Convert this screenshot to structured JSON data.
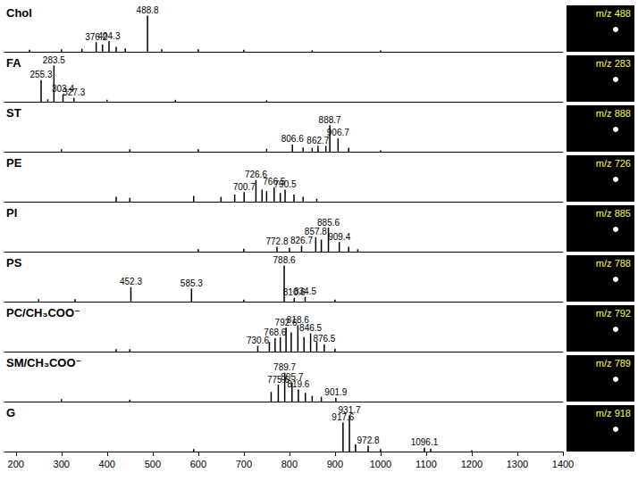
{
  "chart_data": [
    {
      "type": "bar",
      "title": "Chol",
      "color": "#000000",
      "grid": false,
      "tick_labels": false,
      "xlim": [
        175,
        1400
      ],
      "ylim": [
        0,
        100
      ],
      "annotations": [
        "m/z 488"
      ],
      "x": [
        230,
        300,
        345,
        376.2,
        390,
        404.3,
        420,
        440,
        488.8,
        520,
        600,
        700,
        850,
        1000
      ],
      "values": [
        4,
        5,
        6,
        20,
        15,
        22,
        10,
        7,
        75,
        5,
        5,
        4,
        3,
        3
      ],
      "peak_labels": [
        null,
        null,
        null,
        "376.2",
        null,
        "404.3",
        null,
        null,
        "488.8",
        null,
        null,
        null,
        null,
        null
      ]
    },
    {
      "type": "bar",
      "title": "FA",
      "color": "#000000",
      "grid": false,
      "tick_labels": false,
      "xlim": [
        175,
        1400
      ],
      "ylim": [
        0,
        100
      ],
      "annotations": [
        "m/z 283"
      ],
      "x": [
        255.3,
        270,
        283.5,
        303.4,
        327.3,
        400,
        550,
        750
      ],
      "values": [
        45,
        5,
        75,
        15,
        8,
        4,
        4,
        3
      ],
      "peak_labels": [
        "255.3",
        null,
        "283.5",
        "303.4",
        "327.3",
        null,
        null,
        null
      ]
    },
    {
      "type": "bar",
      "title": "ST",
      "color": "#000000",
      "grid": false,
      "tick_labels": false,
      "xlim": [
        175,
        1400
      ],
      "ylim": [
        0,
        100
      ],
      "annotations": [
        "m/z 888"
      ],
      "x": [
        300,
        450,
        600,
        750,
        806.6,
        830,
        850,
        862.7,
        880,
        888.7,
        906.7,
        930,
        1000
      ],
      "values": [
        5,
        5,
        5,
        6,
        15,
        9,
        8,
        12,
        12,
        55,
        28,
        8,
        3
      ],
      "peak_labels": [
        null,
        null,
        null,
        null,
        "806.6",
        null,
        null,
        "862.7",
        null,
        "888.7",
        "906.7",
        null,
        null
      ]
    },
    {
      "type": "bar",
      "title": "PE",
      "color": "#000000",
      "grid": false,
      "tick_labels": false,
      "xlim": [
        175,
        1400
      ],
      "ylim": [
        0,
        100
      ],
      "annotations": [
        "m/z 726"
      ],
      "x": [
        420,
        450,
        590,
        650,
        680,
        700.7,
        726.6,
        740,
        750,
        766.5,
        780,
        790.5,
        810,
        830,
        860
      ],
      "values": [
        10,
        8,
        12,
        10,
        15,
        20,
        45,
        25,
        22,
        30,
        18,
        25,
        15,
        10,
        6
      ],
      "peak_labels": [
        null,
        null,
        null,
        null,
        null,
        "700.7",
        "726.6",
        null,
        null,
        "766.5",
        null,
        "790.5",
        null,
        null,
        null
      ]
    },
    {
      "type": "bar",
      "title": "PI",
      "color": "#000000",
      "grid": false,
      "tick_labels": false,
      "xlim": [
        175,
        1400
      ],
      "ylim": [
        0,
        100
      ],
      "annotations": [
        "m/z 885"
      ],
      "x": [
        600,
        700,
        772.8,
        800,
        826.7,
        857.8,
        870,
        885.6,
        909.4,
        930,
        950
      ],
      "values": [
        5,
        6,
        10,
        8,
        12,
        30,
        25,
        50,
        20,
        10,
        5
      ],
      "peak_labels": [
        null,
        null,
        "772.8",
        null,
        "826.7",
        "857.8",
        null,
        "885.6",
        "909.4",
        null,
        null
      ]
    },
    {
      "type": "bar",
      "title": "PS",
      "color": "#000000",
      "grid": false,
      "tick_labels": false,
      "xlim": [
        175,
        1400
      ],
      "ylim": [
        0,
        100
      ],
      "annotations": [
        "m/z 788"
      ],
      "x": [
        250,
        330,
        452.3,
        585.3,
        700,
        788.6,
        810.6,
        834.5,
        900
      ],
      "values": [
        5,
        5,
        30,
        27,
        4,
        75,
        8,
        10,
        4
      ],
      "peak_labels": [
        null,
        null,
        "452.3",
        "585.3",
        null,
        "788.6",
        "810.6",
        "834.5",
        null
      ]
    },
    {
      "type": "bar",
      "title": "PC/CH₃COO⁻",
      "color": "#000000",
      "grid": false,
      "tick_labels": false,
      "xlim": [
        175,
        1400
      ],
      "ylim": [
        0,
        100
      ],
      "annotations": [
        "m/z 792"
      ],
      "x": [
        420,
        450,
        730.6,
        756,
        768.6,
        780,
        792.6,
        804,
        818.6,
        832,
        846.5,
        860,
        876.5,
        900
      ],
      "values": [
        5,
        5,
        12,
        20,
        28,
        30,
        50,
        40,
        55,
        30,
        38,
        20,
        15,
        6
      ],
      "peak_labels": [
        null,
        null,
        "730.6",
        null,
        "768.6",
        null,
        "792.6",
        null,
        "818.6",
        null,
        "846.5",
        null,
        "876.5",
        null
      ]
    },
    {
      "type": "bar",
      "title": "SM/CH₃COO⁻",
      "color": "#000000",
      "grid": false,
      "tick_labels": false,
      "xlim": [
        175,
        1400
      ],
      "ylim": [
        0,
        100
      ],
      "annotations": [
        "m/z 789"
      ],
      "x": [
        300,
        450,
        760,
        775.6,
        789.7,
        805.7,
        819.6,
        835,
        850,
        870,
        901.9
      ],
      "values": [
        5,
        4,
        20,
        35,
        60,
        40,
        25,
        18,
        12,
        10,
        8
      ],
      "peak_labels": [
        null,
        null,
        null,
        "775.6",
        "789.7",
        "805.7",
        "819.6",
        null,
        null,
        null,
        "901.9"
      ]
    },
    {
      "type": "bar",
      "title": "G",
      "color": "#000000",
      "grid": false,
      "tick_labels": "x",
      "xlim": [
        175,
        1400
      ],
      "ylim": [
        0,
        100
      ],
      "annotations": [
        "m/z 918"
      ],
      "xticks": [
        200,
        300,
        400,
        500,
        600,
        700,
        800,
        900,
        1000,
        1100,
        1200,
        1300,
        1400
      ],
      "x": [
        590,
        917.6,
        931.7,
        945,
        972.8,
        1000,
        1096.1,
        1110,
        1200
      ],
      "values": [
        5,
        60,
        75,
        15,
        12,
        5,
        8,
        6,
        3
      ],
      "peak_labels": [
        null,
        "917.6",
        "931.7",
        null,
        "972.8",
        null,
        "1096.1",
        null,
        null
      ]
    }
  ]
}
